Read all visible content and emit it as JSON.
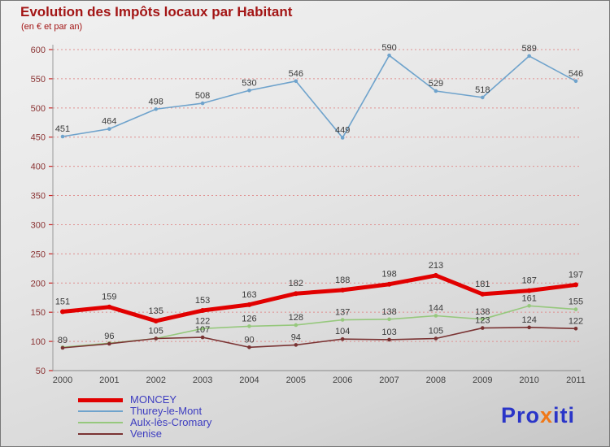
{
  "header": {
    "title": "Evolution des Impôts locaux par Habitant",
    "subtitle": "(en € et par an)"
  },
  "chart_data": {
    "type": "line",
    "x": [
      2000,
      2001,
      2002,
      2003,
      2004,
      2005,
      2006,
      2007,
      2008,
      2009,
      2010,
      2011
    ],
    "ylim": [
      50,
      600
    ],
    "ytick_step": 50,
    "grid": true,
    "legend_position": "bottom-left",
    "series": [
      {
        "name": "MONCEY",
        "color": "#e10000",
        "line_width": 5,
        "values": [
          151,
          159,
          135,
          153,
          163,
          182,
          188,
          198,
          213,
          181,
          187,
          197
        ],
        "labels": [
          151,
          159,
          135,
          153,
          163,
          182,
          188,
          198,
          213,
          181,
          187,
          197
        ]
      },
      {
        "name": "Thurey-le-Mont",
        "color": "#6fa3cc",
        "line_width": 1.6,
        "values": [
          451,
          464,
          498,
          508,
          530,
          546,
          449,
          590,
          529,
          518,
          589,
          546
        ],
        "labels": [
          451,
          464,
          498,
          508,
          530,
          546,
          449,
          590,
          529,
          518,
          589,
          546
        ]
      },
      {
        "name": "Aulx-lès-Cromary",
        "color": "#96c87d",
        "line_width": 1.6,
        "values": [
          90,
          97,
          105,
          122,
          126,
          128,
          137,
          138,
          144,
          138,
          161,
          155
        ],
        "labels": [
          null,
          null,
          null,
          122,
          126,
          128,
          137,
          138,
          144,
          138,
          161,
          155
        ]
      },
      {
        "name": "Venise",
        "color": "#7a3333",
        "line_width": 1.6,
        "values": [
          89,
          96,
          105,
          107,
          90,
          94,
          104,
          103,
          105,
          123,
          124,
          122
        ],
        "labels": [
          89,
          96,
          105,
          107,
          90,
          94,
          104,
          103,
          105,
          123,
          124,
          122
        ]
      }
    ]
  },
  "logo": {
    "parts": [
      {
        "text": "Pro",
        "color": "#2a35c8"
      },
      {
        "text": "x",
        "color": "#f07818"
      },
      {
        "text": "iti",
        "color": "#2a35c8"
      }
    ]
  },
  "colors": {
    "title": "#a31515",
    "axis_label": "#8a3333",
    "grid": "#e09090",
    "tick": "#cc2222",
    "axis_line": "#999999",
    "data_label": "#3a3a3a",
    "legend_text": "#3d3dc0",
    "year_label": "#444444"
  }
}
